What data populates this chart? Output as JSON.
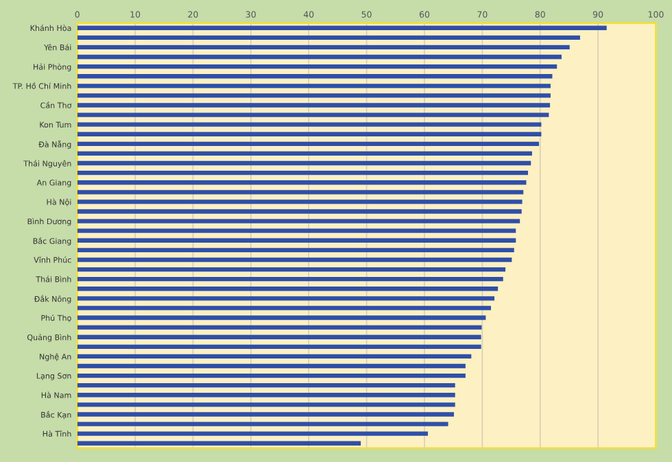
{
  "chart_data": {
    "type": "bar",
    "orientation": "horizontal",
    "categories": [
      "Khánh Hòa",
      null,
      "Yên Bái",
      null,
      "Hải Phòng",
      null,
      "TP. Hồ Chí Minh",
      null,
      "Cần Thơ",
      null,
      "Kon Tum",
      null,
      "Đà Nẵng",
      null,
      "Thái Nguyên",
      null,
      "An Giang",
      null,
      "Hà Nội",
      null,
      "Bình Dương",
      null,
      "Bắc Giang",
      null,
      "Vĩnh Phúc",
      null,
      "Thái Bình",
      null,
      "Đắk Nông",
      null,
      "Phú Thọ",
      null,
      "Quảng Bình",
      null,
      "Nghệ An",
      null,
      "Lạng Sơn",
      null,
      "Hà Nam",
      null,
      "Bắc Kạn",
      null,
      "Hà Tĩnh",
      null
    ],
    "values": [
      91.5,
      86.9,
      85.1,
      83.7,
      82.9,
      82.1,
      81.8,
      81.8,
      81.7,
      81.5,
      80.2,
      80.2,
      79.8,
      78.6,
      78.4,
      77.9,
      77.6,
      77.1,
      76.9,
      76.8,
      76.5,
      75.8,
      75.8,
      75.5,
      75.1,
      74.0,
      73.6,
      72.7,
      72.1,
      71.5,
      70.6,
      69.9,
      69.8,
      69.8,
      68.1,
      67.1,
      67.1,
      65.3,
      65.3,
      65.3,
      65.1,
      64.1,
      60.6,
      49.0
    ],
    "color": "#2f4fa8",
    "xlim": [
      0,
      100
    ],
    "xticks": [
      0,
      10,
      20,
      30,
      40,
      50,
      60,
      70,
      80,
      90,
      100
    ],
    "grid": "x",
    "legend": false
  }
}
